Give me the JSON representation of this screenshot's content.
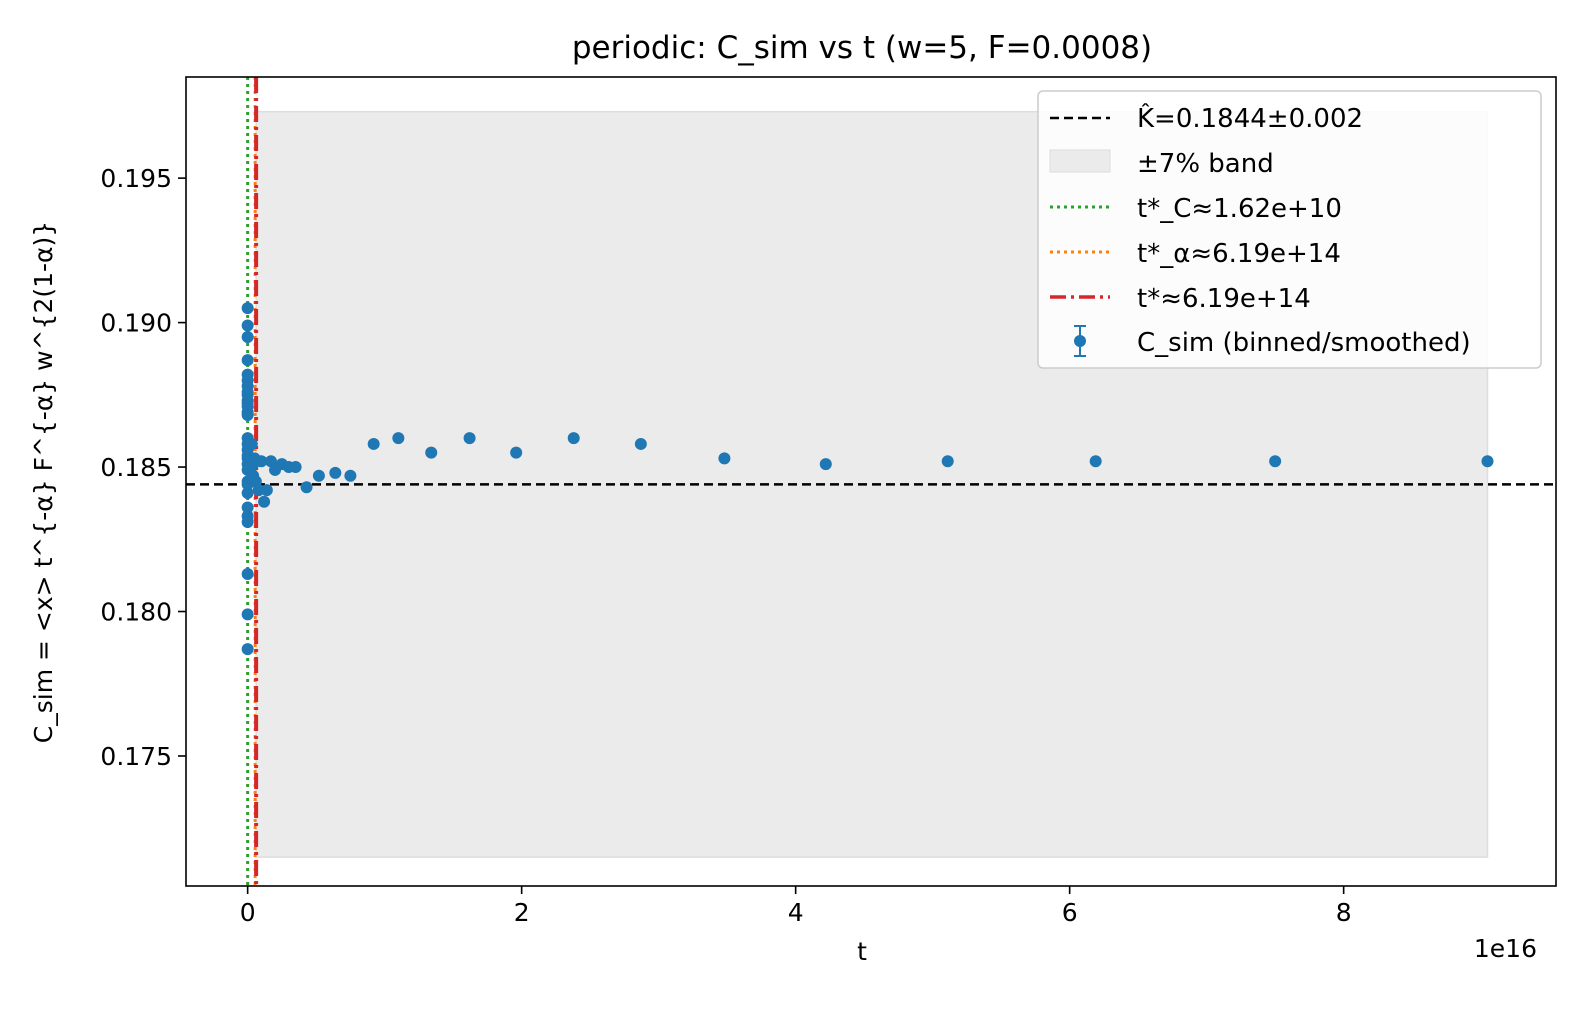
{
  "chart_data": {
    "type": "scatter",
    "title": "periodic: C_sim vs t  (w=5, F=0.0008)",
    "xlabel": "t",
    "ylabel": "C_sim = <x> t^{-α} F^{-α} w^{2(1-α)}",
    "x_offset_text": "1e16",
    "xlim": [
      -0.45,
      9.55
    ],
    "ylim": [
      0.1705,
      0.1985
    ],
    "x_ticks": [
      0,
      2,
      4,
      6,
      8
    ],
    "x_tick_labels": [
      "0",
      "2",
      "4",
      "6",
      "8"
    ],
    "y_ticks": [
      0.175,
      0.18,
      0.185,
      0.19,
      0.195
    ],
    "y_tick_labels": [
      "0.175",
      "0.180",
      "0.185",
      "0.190",
      "0.195"
    ],
    "grid": false,
    "legend_position": "upper right",
    "reference_line": {
      "y": 0.1844,
      "label": "K̂=0.1844±0.002",
      "color": "#000000",
      "style": "dashed"
    },
    "band": {
      "y_min": 0.1715,
      "y_max": 0.1973,
      "x_min": 0.0619,
      "x_max": 9.05,
      "label": "±7% band",
      "color": "#ebebeb"
    },
    "vlines": [
      {
        "x": 0.0,
        "label": "t*_C≈1.62e+10",
        "color": "#2ca02c",
        "style": "dotted"
      },
      {
        "x": 0.0619,
        "label": "t*_α≈6.19e+14",
        "color": "#ff7f0e",
        "style": "dotted"
      },
      {
        "x": 0.0619,
        "label": "t*≈6.19e+14",
        "color": "#d62728",
        "style": "dashdot"
      }
    ],
    "series": [
      {
        "name": "C_sim (binned/smoothed)",
        "color": "#1f77b4",
        "x": [
          0,
          0,
          0,
          0,
          0,
          0,
          0,
          0,
          0,
          0,
          0,
          0,
          0,
          0,
          0,
          0,
          0,
          0,
          0,
          0,
          0,
          0,
          0,
          0,
          0,
          0,
          0,
          0,
          0,
          0,
          0.02,
          0.03,
          0.04,
          0.04,
          0.05,
          0.06,
          0.08,
          0.1,
          0.12,
          0.14,
          0.17,
          0.2,
          0.25,
          0.3,
          0.35,
          0.43,
          0.52,
          0.64,
          0.75,
          0.92,
          1.1,
          1.34,
          1.62,
          1.96,
          2.38,
          2.87,
          3.48,
          4.22,
          5.11,
          6.19,
          7.5,
          9.05
        ],
        "y": [
          0.1905,
          0.1899,
          0.1895,
          0.1887,
          0.1882,
          0.1878,
          0.1875,
          0.1872,
          0.1869,
          0.1876,
          0.1871,
          0.186,
          0.1858,
          0.1856,
          0.1853,
          0.1849,
          0.1845,
          0.1841,
          0.1836,
          0.1833,
          0.1831,
          0.1813,
          0.1799,
          0.1787,
          0.188,
          0.1873,
          0.1868,
          0.1854,
          0.1851,
          0.1844,
          0.1852,
          0.1858,
          0.1851,
          0.1847,
          0.1853,
          0.1845,
          0.1842,
          0.1852,
          0.1838,
          0.1842,
          0.1852,
          0.1849,
          0.1851,
          0.185,
          0.185,
          0.1843,
          0.1847,
          0.1848,
          0.1847,
          0.1858,
          0.186,
          0.1855,
          0.186,
          0.1855,
          0.186,
          0.1858,
          0.1853,
          0.1851,
          0.1852,
          0.1852,
          0.1852,
          0.1852
        ]
      }
    ]
  }
}
